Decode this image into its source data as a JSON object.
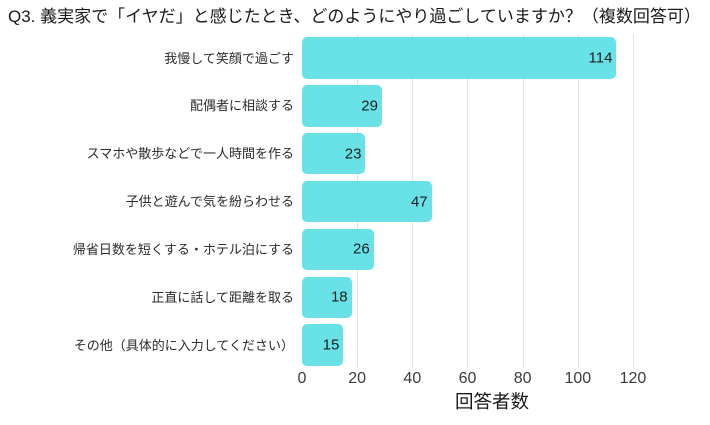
{
  "chart_data": {
    "type": "bar",
    "orientation": "horizontal",
    "title": "Q3. 義実家で「イヤだ」と感じたとき、どのようにやり過ごしていますか？（複数回答可）",
    "categories": [
      "我慢して笑顔で過ごす",
      "配偶者に相談する",
      "スマホや散歩などで一人時間を作る",
      "子供と遊んで気を紛らわせる",
      "帰省日数を短くする・ホテル泊にする",
      "正直に話して距離を取る",
      "その他（具体的に入力してください）"
    ],
    "values": [
      114,
      29,
      23,
      47,
      26,
      18,
      15
    ],
    "xlabel": "回答者数",
    "ylabel": "",
    "xticks": [
      0,
      20,
      40,
      60,
      80,
      100,
      120
    ],
    "xlim": [
      0,
      137
    ],
    "grid": "vertical-light-gray",
    "legend": "none",
    "bar_color": "#69e2e7",
    "gridline_color": "#e3e3e3",
    "background_color": "#ffffff"
  }
}
